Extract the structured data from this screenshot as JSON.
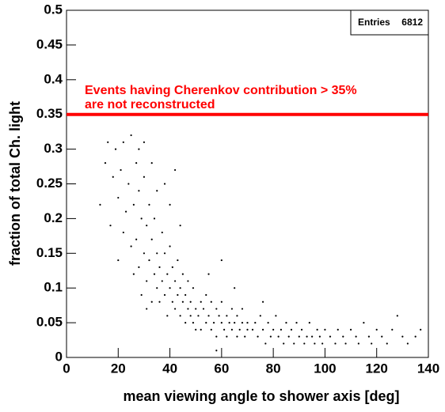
{
  "chart_data": {
    "type": "scatter",
    "xlabel": "mean viewing angle to shower axis [deg]",
    "ylabel": "fraction of total Ch. light",
    "stats": {
      "label": "Entries",
      "value": 6812
    },
    "annotation": [
      "Events having Cherenkov contribution > 35%",
      "are not reconstructed"
    ],
    "hline": {
      "value": 0.35,
      "color": "#ff0000"
    },
    "color": "#000000",
    "xlim": [
      0,
      140
    ],
    "ylim": [
      0,
      0.5
    ],
    "xticks": [
      0,
      20,
      40,
      60,
      80,
      100,
      120,
      140
    ],
    "yticks": [
      0,
      0.05,
      0.1,
      0.15,
      0.2,
      0.25,
      0.3,
      0.35,
      0.4,
      0.45,
      0.5
    ],
    "x": [
      13,
      15,
      16,
      17,
      18,
      19,
      20,
      20,
      21,
      22,
      22,
      23,
      24,
      25,
      25,
      26,
      26,
      27,
      27,
      28,
      28,
      29,
      29,
      30,
      30,
      31,
      31,
      32,
      32,
      33,
      33,
      34,
      34,
      35,
      35,
      28,
      30,
      33,
      35,
      31,
      36,
      36,
      37,
      37,
      38,
      38,
      39,
      39,
      40,
      40,
      41,
      41,
      42,
      42,
      43,
      43,
      44,
      44,
      45,
      45,
      46,
      46,
      47,
      47,
      48,
      48,
      49,
      49,
      50,
      50,
      38,
      40,
      42,
      44,
      51,
      52,
      52,
      53,
      54,
      54,
      55,
      56,
      56,
      57,
      58,
      58,
      59,
      60,
      60,
      61,
      62,
      62,
      63,
      64,
      64,
      65,
      66,
      66,
      67,
      68,
      68,
      69,
      70,
      70,
      55,
      60,
      58,
      65,
      72,
      73,
      74,
      75,
      76,
      77,
      78,
      79,
      80,
      81,
      82,
      83,
      84,
      85,
      86,
      87,
      88,
      89,
      90,
      91,
      92,
      93,
      94,
      95,
      96,
      97,
      98,
      99,
      100,
      76,
      102,
      104,
      105,
      107,
      108,
      110,
      112,
      113,
      115,
      117,
      118,
      120,
      122,
      124,
      126,
      128,
      130,
      132,
      135,
      137
    ],
    "values": [
      0.22,
      0.28,
      0.31,
      0.19,
      0.26,
      0.3,
      0.14,
      0.23,
      0.27,
      0.18,
      0.31,
      0.21,
      0.25,
      0.16,
      0.32,
      0.12,
      0.22,
      0.28,
      0.17,
      0.13,
      0.24,
      0.2,
      0.09,
      0.15,
      0.26,
      0.11,
      0.19,
      0.14,
      0.22,
      0.08,
      0.17,
      0.12,
      0.2,
      0.1,
      0.15,
      0.3,
      0.31,
      0.28,
      0.24,
      0.07,
      0.13,
      0.08,
      0.18,
      0.11,
      0.09,
      0.15,
      0.12,
      0.06,
      0.1,
      0.16,
      0.08,
      0.13,
      0.07,
      0.11,
      0.09,
      0.14,
      0.06,
      0.1,
      0.08,
      0.12,
      0.05,
      0.09,
      0.07,
      0.11,
      0.06,
      0.08,
      0.05,
      0.1,
      0.07,
      0.04,
      0.25,
      0.22,
      0.27,
      0.19,
      0.06,
      0.08,
      0.04,
      0.07,
      0.05,
      0.09,
      0.06,
      0.04,
      0.08,
      0.05,
      0.07,
      0.03,
      0.06,
      0.05,
      0.08,
      0.04,
      0.06,
      0.03,
      0.05,
      0.07,
      0.04,
      0.05,
      0.03,
      0.06,
      0.04,
      0.05,
      0.07,
      0.03,
      0.05,
      0.04,
      0.12,
      0.14,
      0.01,
      0.1,
      0.04,
      0.05,
      0.03,
      0.06,
      0.04,
      0.02,
      0.05,
      0.03,
      0.04,
      0.06,
      0.03,
      0.04,
      0.02,
      0.05,
      0.03,
      0.04,
      0.02,
      0.05,
      0.03,
      0.04,
      0.02,
      0.03,
      0.05,
      0.03,
      0.02,
      0.04,
      0.03,
      0.02,
      0.04,
      0.08,
      0.03,
      0.02,
      0.04,
      0.03,
      0.02,
      0.04,
      0.03,
      0.02,
      0.05,
      0.03,
      0.02,
      0.04,
      0.03,
      0.02,
      0.04,
      0.06,
      0.03,
      0.02,
      0.03,
      0.04
    ]
  }
}
